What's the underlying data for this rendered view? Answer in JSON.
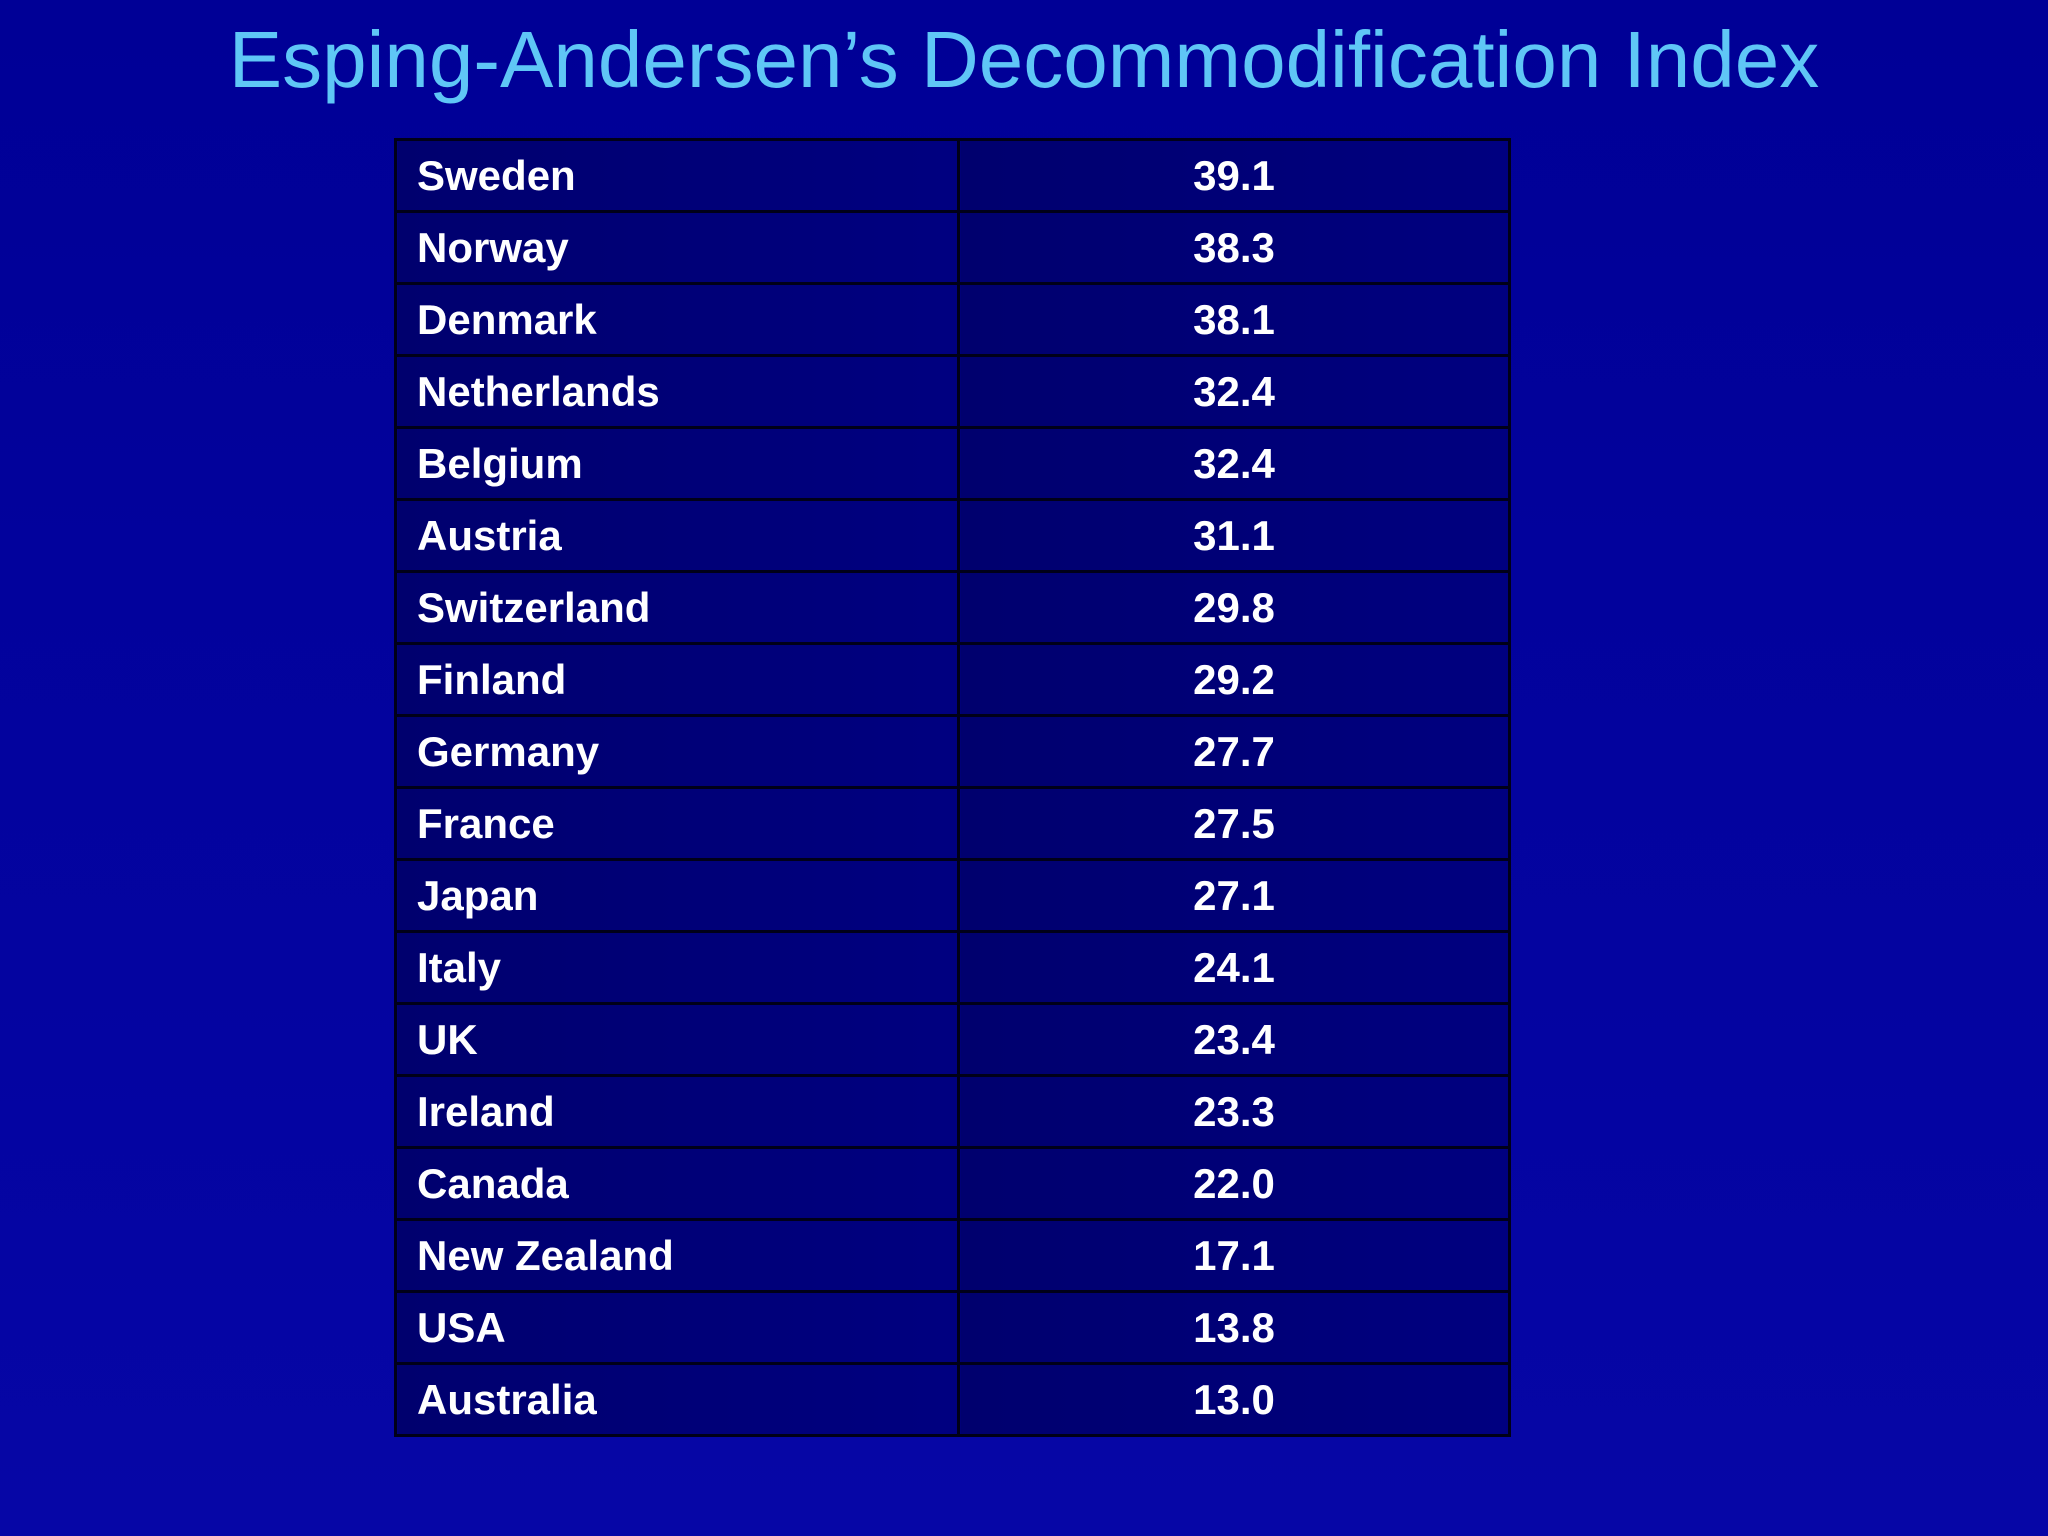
{
  "title": "Esping-Andersen’s Decommodification Index",
  "table": {
    "rows": [
      [
        "Sweden",
        "39.1"
      ],
      [
        "Norway",
        "38.3"
      ],
      [
        "Denmark",
        "38.1"
      ],
      [
        "Netherlands",
        "32.4"
      ],
      [
        "Belgium",
        "32.4"
      ],
      [
        "Austria",
        "31.1"
      ],
      [
        "Switzerland",
        "29.8"
      ],
      [
        "Finland",
        "29.2"
      ],
      [
        "Germany",
        "27.7"
      ],
      [
        "France",
        "27.5"
      ],
      [
        "Japan",
        "27.1"
      ],
      [
        "Italy",
        "24.1"
      ],
      [
        "UK",
        "23.4"
      ],
      [
        "Ireland",
        "23.3"
      ],
      [
        "Canada",
        "22.0"
      ],
      [
        "New Zealand",
        "17.1"
      ],
      [
        "USA",
        "13.8"
      ],
      [
        "Australia",
        "13.0"
      ]
    ]
  }
}
